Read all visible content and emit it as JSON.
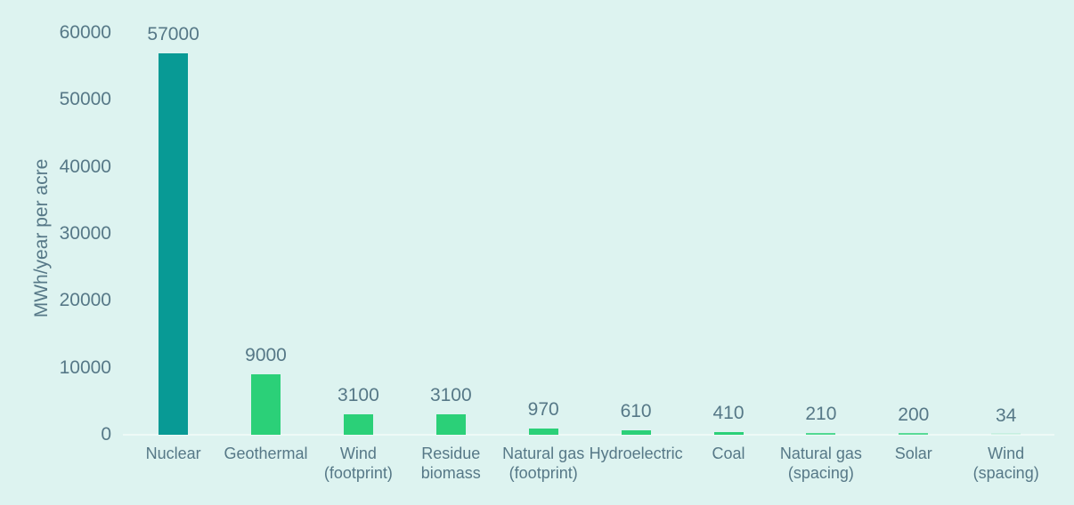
{
  "chart_data": {
    "type": "bar",
    "title": "",
    "xlabel": "",
    "ylabel": "MWh/year per acre",
    "ylim": [
      0,
      60000
    ],
    "yticks": [
      0,
      10000,
      20000,
      30000,
      40000,
      50000,
      60000
    ],
    "grid": false,
    "legend": null,
    "categories": [
      "Nuclear",
      "Geothermal",
      "Wind\n(footprint)",
      "Residue\nbiomass",
      "Natural gas\n(footprint)",
      "Hydroelectric",
      "Coal",
      "Natural gas\n(spacing)",
      "Solar",
      "Wind\n(spacing)"
    ],
    "values": [
      57000,
      9000,
      3100,
      3100,
      970,
      610,
      410,
      210,
      200,
      34
    ],
    "value_labels": [
      "57000",
      "9000",
      "3100",
      "3100",
      "970",
      "610",
      "410",
      "210",
      "200",
      "34"
    ],
    "bar_colors": [
      "#089a95",
      "#2bd078",
      "#2bd078",
      "#2bd078",
      "#2bd078",
      "#2bd078",
      "#2bd078",
      "#2bd078",
      "#2bd078",
      "#2bd078"
    ]
  },
  "colors": {
    "background": "#ddf3f0",
    "highlight_bar": "#089a95",
    "default_bar": "#2bd078",
    "text": "#567887",
    "baseline": "#eefaf7"
  }
}
